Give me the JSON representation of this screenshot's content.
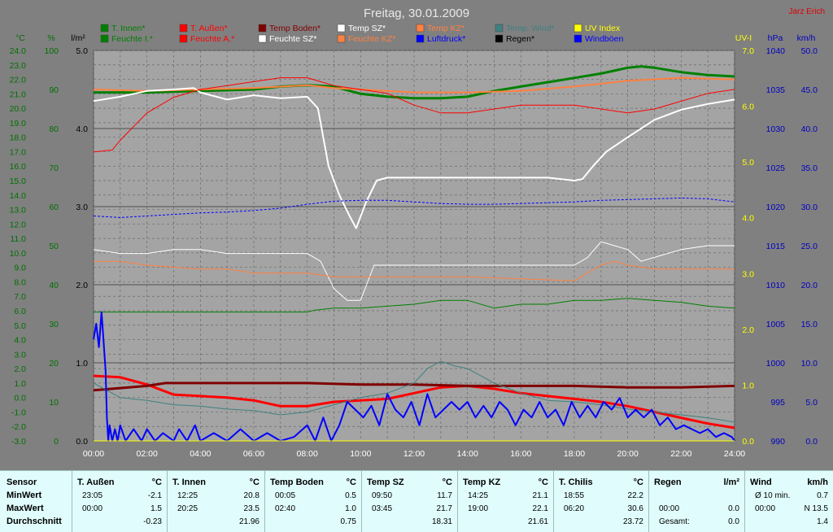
{
  "header": {
    "title": "Freitag, 30.01.2009",
    "author": "Jarz Erich"
  },
  "colors": {
    "background": "#808080",
    "plot_bg": "#a4a4a4",
    "grid": "#6a6a6a",
    "text_green": "#007000",
    "text_yellow": "#ffff00",
    "text_blue": "#0000c0",
    "author": "#e00000"
  },
  "chart_data": {
    "type": "line",
    "title": "Freitag, 30.01.2009",
    "xlabel": "",
    "x_ticks": [
      "00:00",
      "02:00",
      "04:00",
      "06:00",
      "08:00",
      "10:00",
      "12:00",
      "14:00",
      "16:00",
      "18:00",
      "20:00",
      "22:00",
      "24:00"
    ],
    "grid": true,
    "legend_position": "top",
    "axes": {
      "temp": {
        "unit": "°C",
        "range": [
          -3.0,
          24.0
        ],
        "ticks": [
          "24.0",
          "23.0",
          "22.0",
          "21.0",
          "20.0",
          "19.0",
          "18.0",
          "17.0",
          "16.0",
          "15.0",
          "14.0",
          "13.0",
          "12.0",
          "11.0",
          "10.0",
          "9.0",
          "8.0",
          "7.0",
          "6.0",
          "5.0",
          "4.0",
          "3.0",
          "2.0",
          "1.0",
          "0.0",
          "-1.0",
          "-2.0",
          "-3.0"
        ]
      },
      "humidity": {
        "unit": "%",
        "range": [
          0,
          100
        ],
        "ticks": [
          "100",
          "90",
          "80",
          "70",
          "60",
          "50",
          "40",
          "30",
          "20",
          "10",
          "0"
        ]
      },
      "rain": {
        "unit": "l/m²",
        "range": [
          0.0,
          5.0
        ],
        "ticks": [
          "5.0",
          "4.0",
          "3.0",
          "2.0",
          "1.0",
          "0.0"
        ]
      },
      "uv": {
        "unit": "UV-I",
        "range": [
          0.0,
          7.0
        ],
        "ticks": [
          "7.0",
          "6.0",
          "5.0",
          "4.0",
          "3.0",
          "2.0",
          "1.0",
          "0.0"
        ]
      },
      "pressure": {
        "unit": "hPa",
        "range": [
          990,
          1040
        ],
        "ticks": [
          "1040",
          "1035",
          "1030",
          "1025",
          "1020",
          "1015",
          "1010",
          "1005",
          "1000",
          "995",
          "990"
        ]
      },
      "wind": {
        "unit": "km/h",
        "range": [
          0.0,
          50.0
        ],
        "ticks": [
          "50.0",
          "45.0",
          "40.0",
          "35.0",
          "30.0",
          "25.0",
          "20.0",
          "15.0",
          "10.0",
          "5.0",
          "0.0"
        ]
      }
    },
    "legend": [
      {
        "name": "T. Innen*",
        "color": "#008000"
      },
      {
        "name": "T. Außen*",
        "color": "#ff0000"
      },
      {
        "name": "Temp Boden*",
        "color": "#800000"
      },
      {
        "name": "Temp SZ*",
        "color": "#ffffff"
      },
      {
        "name": "Temp KZ*",
        "color": "#ff8040"
      },
      {
        "name": "Temp. Wind*",
        "color": "#408080"
      },
      {
        "name": "UV Index",
        "color": "#ffff00"
      },
      {
        "name": "Feuchte I.*",
        "color": "#008000"
      },
      {
        "name": "Feuchte A.*",
        "color": "#ff0000"
      },
      {
        "name": "Feuchte SZ*",
        "color": "#ffffff"
      },
      {
        "name": "Feuchte KZ*",
        "color": "#ff8040"
      },
      {
        "name": "Luftdruck*",
        "color": "#0000ff"
      },
      {
        "name": "Regen*",
        "color": "#000000"
      },
      {
        "name": "Windböen",
        "color": "#0000ff"
      }
    ],
    "series": [
      {
        "legend": "T. Innen*",
        "axis": "temp",
        "color": "#008000",
        "width": 3,
        "x": [
          0,
          2,
          4,
          6,
          7,
          8,
          9,
          10,
          11,
          12,
          13,
          14,
          15,
          16,
          17,
          18,
          19,
          20,
          20.5,
          21,
          22,
          23,
          24
        ],
        "y": [
          21.1,
          21.1,
          21.2,
          21.3,
          21.5,
          21.6,
          21.5,
          21.0,
          20.8,
          20.7,
          20.7,
          20.8,
          21.2,
          21.5,
          21.8,
          22.1,
          22.4,
          22.8,
          22.9,
          22.8,
          22.5,
          22.3,
          22.2
        ]
      },
      {
        "legend": "Temp KZ*",
        "axis": "temp",
        "color": "#ff8040",
        "width": 2,
        "x": [
          0,
          2,
          4,
          6,
          8,
          9,
          10,
          12,
          14,
          16,
          18,
          19,
          20,
          22,
          24
        ],
        "y": [
          21.3,
          21.2,
          21.3,
          21.4,
          21.6,
          21.4,
          21.3,
          21.1,
          21.1,
          21.2,
          21.5,
          21.7,
          21.9,
          22.1,
          22.0
        ]
      },
      {
        "legend": "T. Außen*",
        "axis": "temp",
        "color": "#ff0000",
        "width": 3,
        "x": [
          0,
          1,
          2,
          3,
          4,
          5,
          6,
          7,
          8,
          9,
          10,
          11,
          12,
          13,
          14,
          15,
          16,
          17,
          18,
          19,
          20,
          21,
          22,
          23,
          24
        ],
        "y": [
          1.5,
          1.4,
          0.9,
          0.2,
          0.1,
          0.0,
          -0.2,
          -0.6,
          -0.6,
          -0.3,
          -0.2,
          -0.1,
          0.3,
          0.7,
          0.8,
          0.6,
          0.3,
          0.1,
          -0.1,
          -0.3,
          -0.6,
          -1.0,
          -1.4,
          -1.8,
          -2.1
        ]
      },
      {
        "legend": "Temp Boden*",
        "axis": "temp",
        "color": "#800000",
        "width": 3,
        "x": [
          0,
          2,
          2.7,
          4,
          6,
          8,
          10,
          12,
          14,
          16,
          18,
          20,
          22,
          24
        ],
        "y": [
          0.5,
          0.8,
          1.0,
          1.0,
          1.0,
          1.0,
          0.9,
          0.9,
          0.8,
          0.8,
          0.8,
          0.7,
          0.7,
          0.8
        ]
      },
      {
        "legend": "Temp SZ*",
        "axis": "temp",
        "color": "#ffffff",
        "width": 2,
        "x": [
          0,
          1,
          2,
          3,
          3.75,
          4,
          5,
          6,
          7,
          8,
          8.4,
          8.8,
          9.2,
          9.6,
          9.83,
          10.2,
          10.6,
          11,
          12,
          14,
          16,
          17,
          18,
          18.3,
          18.7,
          19.2,
          20,
          21,
          22,
          23,
          24
        ],
        "y": [
          20.5,
          20.8,
          21.2,
          21.3,
          21.4,
          21.1,
          20.6,
          20.9,
          20.7,
          20.8,
          20.0,
          16.0,
          14.0,
          12.5,
          11.7,
          13.5,
          15.0,
          15.2,
          15.2,
          15.2,
          15.2,
          15.2,
          15.0,
          15.1,
          16.0,
          17.0,
          18.0,
          19.2,
          19.9,
          20.3,
          20.6
        ]
      },
      {
        "legend": "Temp. Wind*",
        "axis": "temp",
        "color": "#408080",
        "width": 1,
        "x": [
          0,
          1,
          2,
          3,
          4,
          5,
          6,
          7,
          8,
          9,
          10,
          11,
          12,
          12.5,
          13,
          13.5,
          14,
          15,
          16,
          17,
          18,
          19,
          20,
          21,
          22,
          23,
          24
        ],
        "y": [
          1.0,
          0.0,
          -0.2,
          -0.5,
          -0.6,
          -0.8,
          -0.9,
          -1.2,
          -1.0,
          -0.5,
          0.0,
          0.3,
          1.0,
          2.0,
          2.5,
          2.2,
          2.0,
          1.0,
          0.3,
          -0.2,
          -0.3,
          -0.5,
          -0.8,
          -1.0,
          -1.2,
          -1.4,
          -1.7
        ]
      },
      {
        "legend": "Feuchte A.*",
        "axis": "humidity",
        "color": "#ff0000",
        "width": 1,
        "x": [
          0,
          0.7,
          1,
          2,
          3,
          4,
          5,
          6,
          7,
          8,
          9,
          10,
          11,
          12,
          13,
          14,
          15,
          16,
          17,
          18,
          19,
          20,
          21,
          22,
          23,
          24
        ],
        "y": [
          74,
          74.5,
          77,
          84,
          88,
          90,
          91,
          92,
          93,
          93,
          91,
          90,
          89,
          86,
          84,
          84,
          85,
          86,
          86,
          86,
          85,
          84,
          85,
          87,
          89,
          90
        ]
      },
      {
        "legend": "Feuchte SZ*",
        "axis": "humidity",
        "color": "#ffffff",
        "width": 1,
        "x": [
          0,
          1,
          2,
          3,
          4,
          5,
          6,
          7,
          8,
          8.5,
          9,
          9.5,
          10,
          10.5,
          11,
          12,
          14,
          16,
          18,
          18.5,
          19,
          19.5,
          20,
          20.5,
          21,
          22,
          23,
          24
        ],
        "y": [
          49,
          48,
          48,
          49,
          49,
          48,
          48,
          48,
          48,
          46,
          39,
          36,
          36,
          45,
          45,
          45,
          45,
          45,
          45,
          47,
          51,
          50,
          49,
          46,
          47,
          49,
          50,
          50
        ]
      },
      {
        "legend": "Feuchte KZ*",
        "axis": "humidity",
        "color": "#ff8040",
        "width": 1,
        "x": [
          0,
          1,
          2,
          3,
          4,
          5,
          6,
          8,
          9,
          10,
          12,
          14,
          16,
          18,
          18.5,
          19,
          19.5,
          20,
          21,
          22,
          23,
          24
        ],
        "y": [
          46,
          46,
          45,
          44.5,
          44,
          44,
          43,
          43,
          42,
          42,
          42,
          42,
          41.5,
          41,
          43,
          45,
          46,
          45,
          44,
          44,
          44,
          44
        ]
      },
      {
        "legend": "Feuchte I.*",
        "axis": "humidity",
        "color": "#008000",
        "width": 1,
        "x": [
          0,
          2,
          4,
          6,
          8,
          8.3,
          9,
          10,
          11,
          12,
          13,
          14,
          15,
          16,
          17,
          18,
          19,
          20,
          21,
          22,
          23,
          24
        ],
        "y": [
          33,
          33,
          33,
          33,
          33,
          33.5,
          34,
          34,
          34.5,
          35,
          36,
          36,
          34,
          35,
          35,
          36,
          36,
          36.5,
          36,
          35.5,
          34.5,
          34
        ]
      },
      {
        "legend": "Luftdruck*",
        "axis": "pressure",
        "color": "#0000ff",
        "width": 1,
        "dash": "3,2",
        "x": [
          0,
          1,
          2,
          3,
          4,
          5,
          6,
          7,
          8,
          9,
          10,
          11,
          12,
          13,
          14,
          15,
          16,
          17,
          18,
          19,
          20,
          21,
          22,
          23,
          24
        ],
        "y": [
          1018.8,
          1018.6,
          1018.8,
          1019.0,
          1019.2,
          1019.3,
          1019.5,
          1019.8,
          1020.3,
          1020.7,
          1020.8,
          1020.8,
          1020.6,
          1020.4,
          1020.3,
          1020.3,
          1020.4,
          1020.5,
          1020.6,
          1020.8,
          1020.9,
          1021.0,
          1021.1,
          1021.0,
          1020.6
        ]
      },
      {
        "legend": "Windböen",
        "axis": "wind",
        "color": "#0000ff",
        "width": 2,
        "x": [
          0,
          0.1,
          0.2,
          0.3,
          0.35,
          0.45,
          0.5,
          0.55,
          0.6,
          0.7,
          0.8,
          0.9,
          1.0,
          1.2,
          1.5,
          1.8,
          2.0,
          2.3,
          2.6,
          3.0,
          3.2,
          3.5,
          3.8,
          4.0,
          4.5,
          5.0,
          5.5,
          6.0,
          6.5,
          7.0,
          7.5,
          8.0,
          8.3,
          8.6,
          8.9,
          9.2,
          9.5,
          9.8,
          10.1,
          10.4,
          10.7,
          11.0,
          11.3,
          11.6,
          11.9,
          12.2,
          12.5,
          12.8,
          13.1,
          13.4,
          13.7,
          14.0,
          14.3,
          14.6,
          14.9,
          15.2,
          15.5,
          15.8,
          16.1,
          16.4,
          16.7,
          17.0,
          17.3,
          17.6,
          17.9,
          18.2,
          18.5,
          18.8,
          19.1,
          19.4,
          19.7,
          20.0,
          20.3,
          20.6,
          20.9,
          21.2,
          21.5,
          21.8,
          22.1,
          22.4,
          22.7,
          23.0,
          23.3,
          23.6,
          23.9,
          24.0
        ],
        "y": [
          13,
          15,
          12,
          16.5,
          14,
          9,
          3,
          0,
          2,
          0,
          1.5,
          0,
          2,
          0,
          1.5,
          0,
          1.5,
          0,
          1,
          0,
          1.5,
          0,
          2,
          0,
          1,
          0,
          1.5,
          0,
          1,
          0,
          0.5,
          2,
          0,
          3,
          0,
          2,
          5,
          4,
          3,
          4.5,
          2,
          6,
          4,
          3,
          5,
          2,
          6,
          3,
          4,
          5,
          4,
          5,
          3,
          4.5,
          3,
          5,
          4,
          2,
          4,
          3,
          5,
          3,
          4,
          2,
          5,
          3,
          4.5,
          3,
          5,
          4,
          5.5,
          3,
          4,
          3,
          4,
          2,
          3,
          1.5,
          2,
          1.5,
          1,
          1.5,
          0.5,
          1,
          0.5,
          0
        ]
      },
      {
        "legend": "UV Index",
        "axis": "uv",
        "color": "#ffff00",
        "width": 1,
        "x": [
          0,
          24
        ],
        "y": [
          0.0,
          0.0
        ]
      }
    ]
  },
  "stats": {
    "blocks": [
      {
        "title": "Sensor",
        "unit": "",
        "rows": [
          {
            "t": "MinWert",
            "v": ""
          },
          {
            "t": "MaxWert",
            "v": ""
          },
          {
            "t": "Durchschnitt",
            "v": ""
          }
        ]
      },
      {
        "title": "T. Außen",
        "unit": "°C",
        "rows": [
          {
            "t": "23:05",
            "v": "-2.1"
          },
          {
            "t": "00:00",
            "v": "1.5"
          },
          {
            "t": "",
            "v": "-0.23"
          }
        ]
      },
      {
        "title": "T. Innen",
        "unit": "°C",
        "rows": [
          {
            "t": "12:25",
            "v": "20.8"
          },
          {
            "t": "20:25",
            "v": "23.5"
          },
          {
            "t": "",
            "v": "21.96"
          }
        ]
      },
      {
        "title": "Temp Boden",
        "unit": "°C",
        "rows": [
          {
            "t": "00:05",
            "v": "0.5"
          },
          {
            "t": "02:40",
            "v": "1.0"
          },
          {
            "t": "",
            "v": "0.75"
          }
        ]
      },
      {
        "title": "Temp SZ",
        "unit": "°C",
        "rows": [
          {
            "t": "09:50",
            "v": "11.7"
          },
          {
            "t": "03:45",
            "v": "21.7"
          },
          {
            "t": "",
            "v": "18.31"
          }
        ]
      },
      {
        "title": "Temp KZ",
        "unit": "°C",
        "rows": [
          {
            "t": "14:25",
            "v": "21.1"
          },
          {
            "t": "19:00",
            "v": "22.1"
          },
          {
            "t": "",
            "v": "21.61"
          }
        ]
      },
      {
        "title": "T. Chilis",
        "unit": "°C",
        "rows": [
          {
            "t": "18:55",
            "v": "22.2"
          },
          {
            "t": "06:20",
            "v": "30.6"
          },
          {
            "t": "",
            "v": "23.72"
          }
        ]
      },
      {
        "title": "Regen",
        "unit": "l/m²",
        "rows": [
          {
            "t": "",
            "v": ""
          },
          {
            "t": "00:00",
            "v": "0.0"
          },
          {
            "t": "Gesamt:",
            "v": "0.0"
          }
        ]
      },
      {
        "title": "Wind",
        "unit": "km/h",
        "rows": [
          {
            "t": "Ø 10 min.",
            "v": "0.7"
          },
          {
            "t": "00:00",
            "v": "N 13.5"
          },
          {
            "t": "",
            "v": "1.4"
          }
        ]
      }
    ]
  }
}
